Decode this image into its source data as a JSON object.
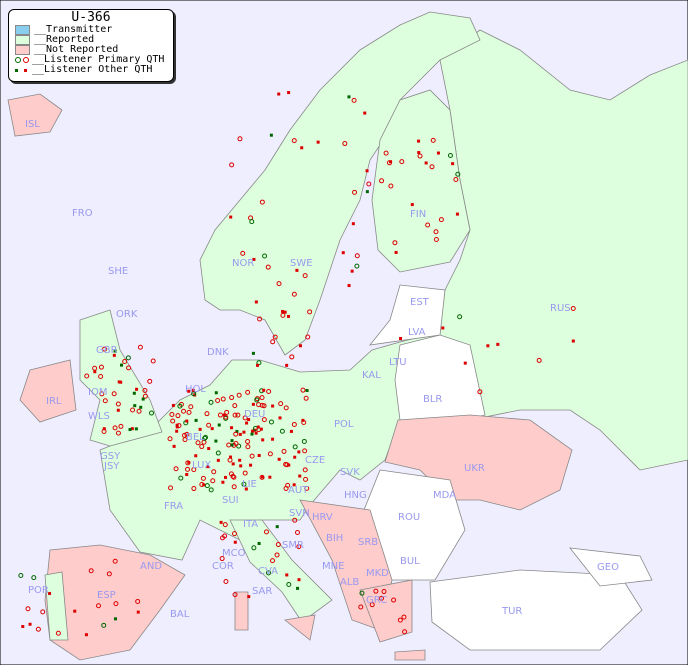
{
  "legend": {
    "title": "U-366",
    "items": [
      {
        "label": "__Transmitter",
        "color": "#88ccee"
      },
      {
        "label": "__Reported",
        "color": "#ddffdd"
      },
      {
        "label": "__Not Reported",
        "color": "#ffcccc"
      },
      {
        "label": "__Listener Primary QTH",
        "colors": [
          "#006600",
          "#dd0000"
        ]
      },
      {
        "label": "__Listener Other QTH",
        "colors": [
          "#006600",
          "#dd0000"
        ]
      }
    ]
  },
  "colors": {
    "sea": "#eeeeff",
    "reported": "#ddffdd",
    "not_reported": "#ffcccc",
    "other": "#ffffff",
    "label": "#9999ee",
    "listener": "#dd0000",
    "listener_green": "#006600"
  },
  "countries": [
    "ISL",
    "FRO",
    "SHE",
    "ORK",
    "NOR",
    "SWE",
    "FIN",
    "RUS",
    "EST",
    "LVA",
    "LTU",
    "KAL",
    "DNK",
    "BLR",
    "POL",
    "HOL",
    "DEU",
    "IRL",
    "GBR",
    "IOM",
    "WLS",
    "BEL",
    "GSY",
    "JSY",
    "LUX",
    "CZE",
    "SVK",
    "UKR",
    "MDA",
    "FRA",
    "SUI",
    "LIE",
    "AUT",
    "HNG",
    "ROU",
    "SVN",
    "HRV",
    "BIH",
    "SRB",
    "ITA",
    "MCO",
    "COR",
    "CVA",
    "SMR",
    "MNE",
    "ALB",
    "MKD",
    "BUL",
    "GRC",
    "TUR",
    "GEO",
    "AND",
    "POR",
    "ESP",
    "BAL",
    "SAR"
  ]
}
